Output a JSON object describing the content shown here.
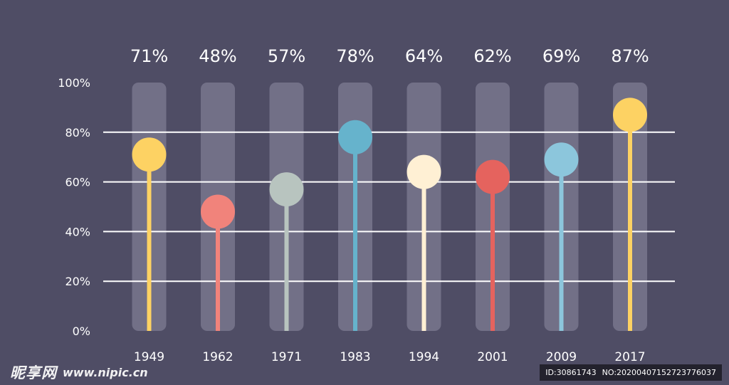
{
  "chart_data": {
    "type": "lollipop",
    "categories": [
      "1949",
      "1962",
      "1971",
      "1983",
      "1994",
      "2001",
      "2009",
      "2017"
    ],
    "values": [
      71,
      48,
      57,
      78,
      64,
      62,
      69,
      87
    ],
    "value_labels": [
      "71%",
      "48%",
      "57%",
      "78%",
      "64%",
      "62%",
      "69%",
      "87%"
    ],
    "colors": [
      "#fdd263",
      "#f1837b",
      "#b8c4bf",
      "#66b3cc",
      "#fff0d4",
      "#e5635e",
      "#8cc6dc",
      "#fdd263"
    ],
    "y_ticks": [
      "0%",
      "20%",
      "40%",
      "60%",
      "80%",
      "100%"
    ],
    "ylim": [
      0,
      100
    ],
    "grid": true
  },
  "watermark": {
    "brand": "昵享网",
    "url": "www.nipic.cn",
    "id_text": "ID:30861743",
    "no_text": "NO:20200407152723776037"
  }
}
